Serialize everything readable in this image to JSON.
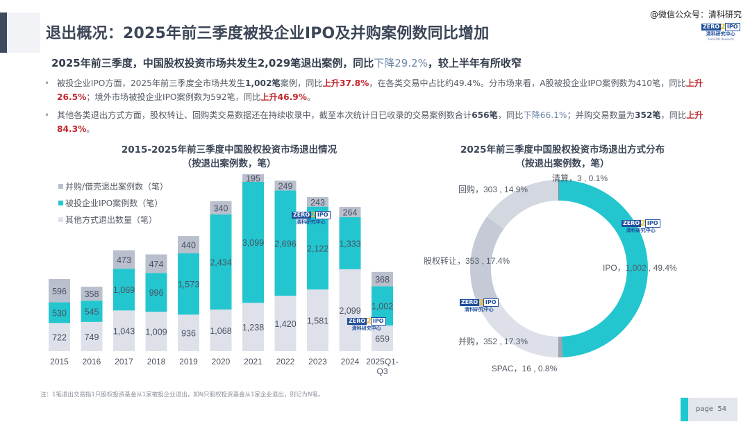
{
  "header": {
    "title": "退出概况：2025年前三季度被投企业IPO及并购案例数同比增加",
    "watermark": "@微信公众号：清科研究",
    "logo": {
      "zero": "ZERO",
      "two": "2",
      "ipo": "IPO",
      "cn": "清科研究中心",
      "en": "Zero2IPO Research"
    }
  },
  "headline": {
    "prefix": "2025年前三季度，中国股权投资市场共发生2,029笔退出案例，同比",
    "down_text": "下降29.2%",
    "suffix": "，较上半年有所收窄"
  },
  "bullets": [
    {
      "segments": [
        {
          "t": "被投企业IPO方面，2025年前三季度全市场共发生",
          "s": "n"
        },
        {
          "t": "1,002笔",
          "s": "b"
        },
        {
          "t": "案例，同比",
          "s": "n"
        },
        {
          "t": "上升37.8%",
          "s": "u"
        },
        {
          "t": "，在各类交易中占比约49.4%。分市场来看，A股被投企业IPO案例数为410笔，同比",
          "s": "n"
        },
        {
          "t": "上升26.5%",
          "s": "u"
        },
        {
          "t": "；境外市场被投企业IPO案例数为592笔，同比",
          "s": "n"
        },
        {
          "t": "上升46.9%",
          "s": "u"
        },
        {
          "t": "。",
          "s": "n"
        }
      ]
    },
    {
      "segments": [
        {
          "t": "其他各类退出方式方面，股权转让、回购类交易数据还在持续收录中，截至本次统计日已收录的交易案例数合计",
          "s": "n"
        },
        {
          "t": "656笔",
          "s": "b"
        },
        {
          "t": "，同比",
          "s": "n"
        },
        {
          "t": "下降66.1%",
          "s": "d"
        },
        {
          "t": "；并购交易数量为",
          "s": "n"
        },
        {
          "t": "352笔",
          "s": "b"
        },
        {
          "t": "，同比",
          "s": "n"
        },
        {
          "t": "上升84.3%",
          "s": "u"
        },
        {
          "t": "。",
          "s": "n"
        }
      ]
    }
  ],
  "chart_data": [
    {
      "type": "bar",
      "stacked": true,
      "title": "2015-2025年前三季度中国股权投资市场退出情况",
      "subtitle": "（按退出案例数，笔）",
      "xlabel": "",
      "ylabel": "",
      "categories": [
        "2015",
        "2016",
        "2017",
        "2018",
        "2019",
        "2020",
        "2021",
        "2022",
        "2023",
        "2024",
        "2025Q1-Q3"
      ],
      "series": [
        {
          "name": "其他方式退出数量（笔）",
          "color": "#dfe1ea",
          "values": [
            722,
            749,
            1043,
            1009,
            936,
            1068,
            1238,
            1420,
            1581,
            2099,
            659
          ]
        },
        {
          "name": "被投企业IPO案例数（笔）",
          "color": "#23c6cf",
          "values": [
            530,
            545,
            1069,
            996,
            1573,
            2434,
            3099,
            2696,
            2122,
            1333,
            1002
          ]
        },
        {
          "name": "并购/借壳退出案例数（笔）",
          "color": "#b9bfcd",
          "values": [
            596,
            358,
            473,
            474,
            440,
            340,
            195,
            249,
            243,
            264,
            368
          ]
        }
      ],
      "legend_order": [
        "并购/借壳退出案例数（笔）",
        "被投企业IPO案例数（笔）",
        "其他方式退出数量（笔）"
      ],
      "legend_position": "top-left",
      "grid": false
    },
    {
      "type": "pie",
      "donut": true,
      "title": "2025年前三季度中国股权投资市场退出方式分布",
      "subtitle": "（按退出案例数，笔）",
      "slices": [
        {
          "label": "IPO",
          "value": 1002,
          "percent": "49.4%",
          "display_value": "1,002",
          "color": "#23c6cf"
        },
        {
          "label": "SPAC",
          "value": 16,
          "percent": "0.8%",
          "display_value": "16",
          "color": "#9ea4b0"
        },
        {
          "label": "并购",
          "value": 352,
          "percent": "17.3%",
          "display_value": "352",
          "color": "#dde0e9"
        },
        {
          "label": "股权转让",
          "value": 353,
          "percent": "17.4%",
          "display_value": "353",
          "color": "#c5cad6"
        },
        {
          "label": "回购",
          "value": 303,
          "percent": "14.9%",
          "display_value": "303",
          "color": "#d3d7e0"
        },
        {
          "label": "清算",
          "value": 3,
          "percent": "0.1%",
          "display_value": "3",
          "color": "#7f8694"
        }
      ]
    }
  ],
  "footnote": "注：1笔退出交易指1只股权投资基金从1家被投企业退出，如N只股权投资基金从1家企业退出，则记为N笔。",
  "page": {
    "label": "page",
    "number": "54"
  }
}
